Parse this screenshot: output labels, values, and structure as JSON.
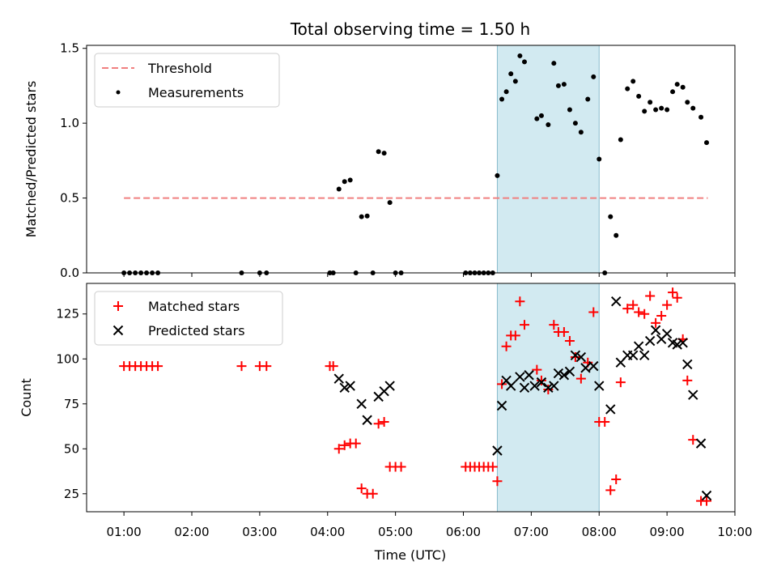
{
  "figure": {
    "title": "Total observing time = 1.50 h",
    "xlabel": "Time (UTC)"
  },
  "chart_data": [
    {
      "type": "scatter",
      "panel": "top",
      "ylabel": "Matched/Predicted stars",
      "xlim_hours": [
        0.45,
        10.0
      ],
      "ylim": [
        0,
        1.52
      ],
      "yticks": [
        0.0,
        0.5,
        1.0,
        1.5
      ],
      "ytick_labels": [
        "0.0",
        "0.5",
        "1.0",
        "1.5"
      ],
      "highlight_span_hours": [
        6.5,
        8.0
      ],
      "legend": {
        "placement": "upper-left",
        "entries": [
          "Threshold",
          "Measurements"
        ]
      },
      "threshold": {
        "name": "Threshold",
        "value": 0.5,
        "x_range_hours": [
          1.0,
          9.6
        ],
        "color": "#f08080",
        "style": "dashed"
      },
      "series": [
        {
          "name": "Measurements",
          "color": "#000000",
          "marker": "dot",
          "x_hours": [
            1.0,
            1.083,
            1.167,
            1.25,
            1.333,
            1.417,
            1.5,
            2.733,
            3.0,
            3.1,
            4.033,
            4.083,
            4.167,
            4.25,
            4.333,
            4.417,
            4.5,
            4.583,
            4.667,
            4.75,
            4.833,
            4.917,
            5.0,
            5.083,
            6.033,
            6.1,
            6.167,
            6.233,
            6.3,
            6.367,
            6.433,
            6.5,
            6.567,
            6.633,
            6.7,
            6.767,
            6.833,
            6.9,
            7.083,
            7.15,
            7.25,
            7.333,
            7.4,
            7.483,
            7.567,
            7.65,
            7.733,
            7.833,
            7.917,
            8.0,
            8.083,
            8.167,
            8.25,
            8.317,
            8.417,
            8.5,
            8.583,
            8.667,
            8.75,
            8.833,
            8.917,
            9.0,
            9.083,
            9.15,
            9.233,
            9.3,
            9.383,
            9.5,
            9.583
          ],
          "y": [
            0,
            0,
            0,
            0,
            0,
            0,
            0,
            0,
            0,
            0,
            0,
            0,
            0.56,
            0.61,
            0.62,
            0,
            0.375,
            0.38,
            0,
            0.81,
            0.8,
            0.47,
            0,
            0,
            0,
            0,
            0,
            0,
            0,
            0,
            0,
            0.65,
            1.16,
            1.21,
            1.33,
            1.28,
            1.45,
            1.41,
            1.03,
            1.05,
            0.99,
            1.4,
            1.25,
            1.26,
            1.09,
            1.0,
            0.94,
            1.16,
            1.31,
            0.76,
            0,
            0.375,
            0.25,
            0.89,
            1.23,
            1.28,
            1.18,
            1.08,
            1.14,
            1.09,
            1.1,
            1.09,
            1.21,
            1.26,
            1.24,
            1.14,
            1.1,
            1.04,
            0.87
          ]
        }
      ]
    },
    {
      "type": "scatter",
      "panel": "bottom",
      "ylabel": "Count",
      "xlabel": "Time (UTC)",
      "xlim_hours": [
        0.45,
        10.0
      ],
      "ylim": [
        15,
        142
      ],
      "yticks": [
        25,
        50,
        75,
        100,
        125
      ],
      "ytick_labels": [
        "25",
        "50",
        "75",
        "100",
        "125"
      ],
      "xticks_hours": [
        1,
        2,
        3,
        4,
        5,
        6,
        7,
        8,
        9,
        10
      ],
      "xtick_labels": [
        "01:00",
        "02:00",
        "03:00",
        "04:00",
        "05:00",
        "06:00",
        "07:00",
        "08:00",
        "09:00",
        "10:00"
      ],
      "highlight_span_hours": [
        6.5,
        8.0
      ],
      "legend": {
        "placement": "upper-left",
        "entries": [
          "Matched stars",
          "Predicted stars"
        ]
      },
      "series": [
        {
          "name": "Matched stars",
          "color": "#ff0000",
          "marker": "plus",
          "x_hours": [
            1.0,
            1.083,
            1.167,
            1.25,
            1.333,
            1.417,
            1.5,
            2.733,
            3.0,
            3.1,
            4.033,
            4.083,
            4.167,
            4.25,
            4.333,
            4.417,
            4.5,
            4.583,
            4.667,
            4.75,
            4.833,
            4.917,
            5.0,
            5.083,
            6.033,
            6.1,
            6.167,
            6.233,
            6.3,
            6.367,
            6.433,
            6.5,
            6.567,
            6.633,
            6.7,
            6.767,
            6.833,
            6.9,
            7.083,
            7.15,
            7.25,
            7.333,
            7.4,
            7.483,
            7.567,
            7.65,
            7.733,
            7.833,
            7.917,
            8.0,
            8.083,
            8.167,
            8.25,
            8.317,
            8.417,
            8.5,
            8.583,
            8.667,
            8.75,
            8.833,
            8.917,
            9.0,
            9.083,
            9.15,
            9.233,
            9.3,
            9.383,
            9.5,
            9.583
          ],
          "y": [
            96,
            96,
            96,
            96,
            96,
            96,
            96,
            96,
            96,
            96,
            96,
            96,
            50,
            52,
            53,
            53,
            28,
            25,
            25,
            64,
            65,
            40,
            40,
            40,
            40,
            40,
            40,
            40,
            40,
            40,
            40,
            32,
            86,
            107,
            113,
            113,
            132,
            119,
            94,
            88,
            83,
            119,
            115,
            115,
            110,
            101,
            89,
            98,
            126,
            65,
            65,
            27,
            33,
            87,
            128,
            130,
            126,
            125,
            135,
            120,
            124,
            130,
            137,
            134,
            111,
            88,
            55,
            21,
            21
          ]
        },
        {
          "name": "Predicted stars",
          "color": "#000000",
          "marker": "x",
          "x_hours": [
            4.167,
            4.25,
            4.333,
            4.5,
            4.583,
            4.75,
            4.833,
            4.917,
            6.5,
            6.567,
            6.633,
            6.7,
            6.833,
            6.9,
            6.967,
            7.05,
            7.15,
            7.25,
            7.333,
            7.4,
            7.483,
            7.567,
            7.65,
            7.733,
            7.8,
            7.917,
            8.0,
            8.167,
            8.25,
            8.317,
            8.417,
            8.5,
            8.583,
            8.667,
            8.75,
            8.833,
            8.917,
            9.0,
            9.083,
            9.15,
            9.233,
            9.3,
            9.383,
            9.5,
            9.583
          ],
          "y": [
            89,
            84,
            85,
            75,
            66,
            79,
            82,
            85,
            49,
            74,
            88,
            85,
            90,
            84,
            91,
            85,
            87,
            84,
            85,
            92,
            91,
            93,
            102,
            101,
            95,
            96,
            85,
            72,
            132,
            98,
            102,
            102,
            107,
            102,
            110,
            116,
            111,
            114,
            109,
            108,
            109,
            97,
            80,
            53,
            24
          ]
        }
      ]
    }
  ]
}
